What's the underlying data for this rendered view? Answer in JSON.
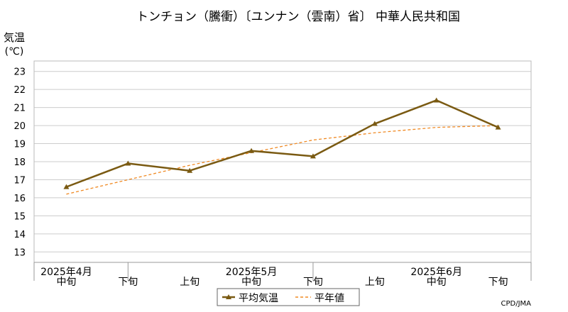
{
  "chart_data": {
    "type": "line",
    "title": "トンチョン（騰衝）〔ユンナン（雲南）省〕 中華人民共和国",
    "ylabel_line1": "気温",
    "ylabel_line2": "(℃)",
    "ylim": [
      12.5,
      23.5
    ],
    "yticks": [
      13,
      14,
      15,
      16,
      17,
      18,
      19,
      20,
      21,
      22,
      23
    ],
    "categories": [
      "中旬",
      "下旬",
      "上旬",
      "中旬",
      "下旬",
      "上旬",
      "中旬",
      "下旬"
    ],
    "month_labels": [
      {
        "label": "2025年4月",
        "index": 0
      },
      {
        "label": "2025年5月",
        "index": 3
      },
      {
        "label": "2025年6月",
        "index": 6
      }
    ],
    "month_boundaries": [
      1.5,
      4.5
    ],
    "grid": true,
    "legend_position": "bottom",
    "series": [
      {
        "name": "平均気温",
        "color": "#7a5a12",
        "style": "solid-marker",
        "values": [
          16.6,
          17.9,
          17.5,
          18.6,
          18.3,
          20.1,
          21.4,
          19.9
        ]
      },
      {
        "name": "平年値",
        "color": "#f08a24",
        "style": "dashed",
        "values": [
          16.2,
          17.0,
          17.8,
          18.5,
          19.2,
          19.6,
          19.9,
          20.0
        ]
      }
    ],
    "credit": "CPD/JMA"
  }
}
